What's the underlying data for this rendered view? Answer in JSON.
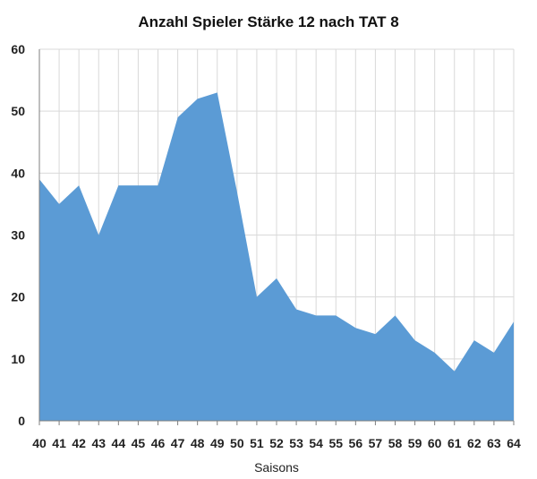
{
  "chart_data": {
    "type": "area",
    "title": "Anzahl Spieler Stärke 12 nach TAT 8",
    "xlabel": "Saisons",
    "ylabel": "",
    "categories": [
      "40",
      "41",
      "42",
      "43",
      "44",
      "45",
      "46",
      "47",
      "48",
      "49",
      "50",
      "51",
      "52",
      "53",
      "54",
      "55",
      "56",
      "57",
      "58",
      "59",
      "60",
      "61",
      "62",
      "63",
      "64"
    ],
    "series": [
      {
        "values": [
          39,
          35,
          38,
          30,
          38,
          38,
          38,
          49,
          52,
          53,
          37,
          20,
          23,
          18,
          17,
          17,
          15,
          14,
          17,
          13,
          11,
          8,
          13,
          11,
          16
        ]
      }
    ],
    "ylim": [
      0,
      60
    ],
    "yticks": [
      0,
      10,
      20,
      30,
      40,
      50,
      60
    ],
    "grid": true,
    "legend": "none",
    "colors": {
      "fill": "#5b9bd5",
      "grid": "#d9d9d9",
      "axis": "#7f7f7f"
    }
  }
}
